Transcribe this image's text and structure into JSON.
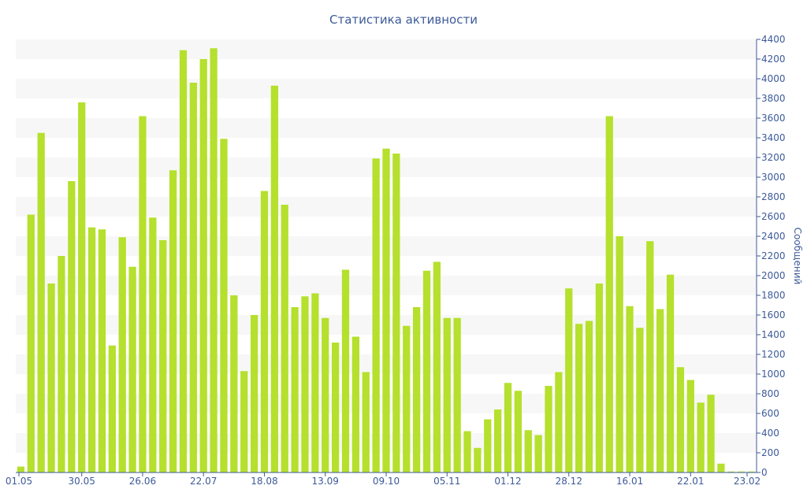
{
  "chart_data": {
    "type": "bar",
    "title": "Статистика активности",
    "ylabel": "Сообщений",
    "ylim": [
      0,
      4400
    ],
    "y_ticks": [
      0,
      200,
      400,
      600,
      800,
      1000,
      1200,
      1400,
      1600,
      1800,
      2000,
      2200,
      2400,
      2600,
      2800,
      3000,
      3200,
      3400,
      3600,
      3800,
      4000,
      4200,
      4400
    ],
    "x_tick_labels": [
      "01.05",
      "30.05",
      "26.06",
      "22.07",
      "18.08",
      "13.09",
      "09.10",
      "05.11",
      "01.12",
      "28.12",
      "16.01",
      "22.01",
      "23.02"
    ],
    "x_tick_positions": [
      0,
      6.5,
      12.5,
      18.5,
      24.5,
      30.5,
      36.5,
      42.5,
      48.5,
      54.5,
      60.5,
      66.5,
      73
    ],
    "values": [
      60,
      2620,
      3450,
      1920,
      2200,
      2960,
      3760,
      2490,
      2470,
      1290,
      2390,
      2090,
      3620,
      2590,
      2360,
      3070,
      4290,
      3960,
      4200,
      4310,
      3390,
      1800,
      1030,
      1600,
      2860,
      3930,
      2720,
      1680,
      1790,
      1820,
      1570,
      1320,
      2060,
      1380,
      1020,
      3190,
      3290,
      3240,
      1490,
      1680,
      2050,
      2140,
      1570,
      1570,
      420,
      250,
      540,
      640,
      910,
      830,
      430,
      380,
      880,
      1020,
      1870,
      1510,
      1540,
      1920,
      3620,
      2400,
      1690,
      1470,
      2350,
      1660,
      2010,
      1070,
      940,
      710,
      790,
      90,
      10,
      10,
      10
    ],
    "bar_color": "#b5e02d",
    "band_color": "#f7f7f7",
    "axis_color": "#3d5a99",
    "grid": "alternating-bands",
    "y_axis_position": "right",
    "legend": "none"
  }
}
